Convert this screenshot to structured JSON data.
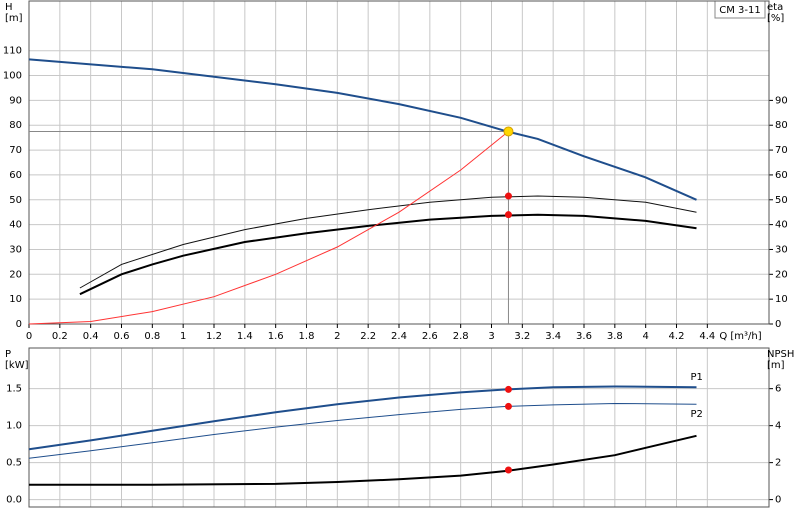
{
  "chart_data": [
    {
      "type": "line",
      "title": "CM 3-11",
      "y_label": "H",
      "y_unit": "[m]",
      "y2_label": "eta",
      "y2_unit": "[%]",
      "x_label": "Q [m³/h]",
      "xlim": [
        0,
        4.8
      ],
      "xticks": [
        0,
        0.2,
        0.4,
        0.6,
        0.8,
        1.0,
        1.2,
        1.4,
        1.6,
        1.8,
        2.0,
        2.2,
        2.4,
        2.6,
        2.8,
        3.0,
        3.2,
        3.4,
        3.6,
        3.8,
        4.0,
        4.2,
        4.4
      ],
      "ylim": [
        0,
        130
      ],
      "yticks": [
        0,
        10,
        20,
        30,
        40,
        50,
        60,
        70,
        80,
        90,
        100,
        110
      ],
      "y2lim": [
        0,
        130
      ],
      "y2ticks": [
        0,
        10,
        20,
        30,
        40,
        50,
        60,
        70,
        80,
        90
      ],
      "grid": true,
      "series": [
        {
          "color": "#1f4e8c",
          "line_width": 2,
          "x": [
            0,
            0.8,
            1.6,
            2.0,
            2.4,
            2.8,
            3.1,
            3.3,
            3.6,
            4.0,
            4.33
          ],
          "values": [
            106.5,
            102.5,
            96.5,
            93,
            88.5,
            83,
            77.5,
            74.5,
            67.5,
            59,
            50
          ]
        },
        {
          "color": "#111111",
          "line_width": 1,
          "axis": "y2",
          "x": [
            0.33,
            0.6,
            1.0,
            1.4,
            1.8,
            2.2,
            2.6,
            3.0,
            3.3,
            3.6,
            4.0,
            4.33
          ],
          "values": [
            14.5,
            24,
            32,
            38,
            42.5,
            46,
            49,
            51,
            51.5,
            51,
            49,
            45
          ]
        },
        {
          "color": "#000000",
          "line_width": 2,
          "axis": "y2",
          "x": [
            0.33,
            0.6,
            0.8,
            1.0,
            1.4,
            1.8,
            2.2,
            2.6,
            3.0,
            3.3,
            3.6,
            4.0,
            4.33
          ],
          "values": [
            12,
            20,
            24,
            27.5,
            33,
            36.5,
            39.5,
            42,
            43.5,
            44,
            43.5,
            41.5,
            38.5
          ]
        },
        {
          "color": "#ff3333",
          "line_width": 1,
          "x": [
            0,
            0.4,
            0.8,
            1.2,
            1.6,
            2.0,
            2.4,
            2.8,
            3.11
          ],
          "values": [
            0,
            1,
            5,
            11,
            20,
            31,
            45,
            62,
            77.5
          ]
        }
      ],
      "markers": {
        "color": "#ee1111",
        "x": [
          3.11,
          3.11
        ],
        "values": [
          51.5,
          44
        ]
      },
      "operating_point": {
        "color": "#ffd700",
        "x": 3.11,
        "value": 77.5
      }
    },
    {
      "type": "line",
      "y_label": "P",
      "y_unit": "[kW]",
      "y2_label": "NPSH",
      "y2_unit": "[m]",
      "xlim": [
        0,
        4.8
      ],
      "ylim": [
        -0.1,
        2.05
      ],
      "yticks": [
        {
          "value": 0,
          "label": "0.0"
        },
        0.5,
        {
          "value": 1,
          "label": "1.0"
        },
        1.5
      ],
      "y2lim": [
        -0.4,
        8.2
      ],
      "y2ticks": [
        0,
        2,
        4,
        6
      ],
      "grid": true,
      "series": [
        {
          "name": "P1",
          "color": "#1f4e8c",
          "line_width": 2,
          "x": [
            0,
            0.4,
            0.8,
            1.2,
            1.6,
            2.0,
            2.4,
            2.8,
            3.1,
            3.4,
            3.8,
            4.33
          ],
          "values": [
            0.68,
            0.8,
            0.93,
            1.06,
            1.18,
            1.29,
            1.38,
            1.45,
            1.49,
            1.52,
            1.53,
            1.52
          ]
        },
        {
          "name": "P2",
          "color": "#1f4e8c",
          "line_width": 1,
          "x": [
            0,
            0.4,
            0.8,
            1.2,
            1.6,
            2.0,
            2.4,
            2.8,
            3.1,
            3.4,
            3.8,
            4.33
          ],
          "values": [
            0.56,
            0.66,
            0.77,
            0.88,
            0.98,
            1.07,
            1.15,
            1.22,
            1.26,
            1.28,
            1.3,
            1.29
          ]
        },
        {
          "color": "#000000",
          "line_width": 2,
          "axis": "y2",
          "x": [
            0,
            0.8,
            1.6,
            2.0,
            2.4,
            2.8,
            3.1,
            3.4,
            3.8,
            4.0,
            4.33
          ],
          "values": [
            0.8,
            0.8,
            0.85,
            0.95,
            1.1,
            1.3,
            1.55,
            1.9,
            2.4,
            2.8,
            3.45
          ]
        }
      ],
      "markers": {
        "color": "#ee1111",
        "x": [
          3.11,
          3.11
        ],
        "values": [
          1.49,
          1.26
        ]
      },
      "markers2": {
        "color": "#ee1111",
        "axis": "y2",
        "x": [
          3.11
        ],
        "values": [
          1.6
        ]
      }
    }
  ]
}
